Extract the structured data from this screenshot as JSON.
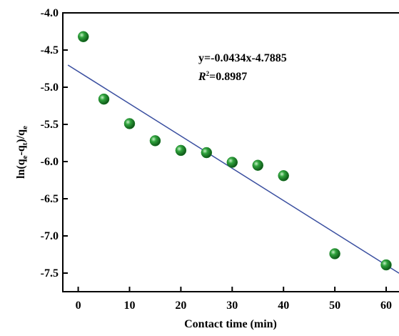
{
  "chart_data": {
    "type": "scatter",
    "x_label": "Contact time (min)",
    "y_label": {
      "main": "ln(q",
      "sub1": "e",
      "mid": "-q",
      "sub2": "t",
      "end": ")/q",
      "sub3": "e"
    },
    "annotation": {
      "equation": "y=-0.0434x-4.7885",
      "r_symbol": "R",
      "r_sup": "2",
      "r_value": "=0.8987"
    },
    "xlim": [
      -3,
      62.5
    ],
    "xticks": [
      0,
      10,
      20,
      30,
      40,
      50,
      60
    ],
    "ylim": [
      -7.75,
      -4.0
    ],
    "yticks": [
      {
        "value": -4.0,
        "label": "-4.0"
      },
      -4.5,
      {
        "value": -5.0,
        "label": "-5.0"
      },
      -5.5,
      {
        "value": -6.0,
        "label": "-6.0"
      },
      -6.5,
      {
        "value": -7.0,
        "label": "-7.0"
      },
      -7.5
    ],
    "series": [
      {
        "color": "#1f8a2e",
        "x": [
          1,
          5,
          10,
          15,
          20,
          25,
          30,
          35,
          40,
          50,
          60
        ],
        "values": [
          -4.32,
          -5.16,
          -5.49,
          -5.72,
          -5.85,
          -5.88,
          -6.01,
          -6.05,
          -6.19,
          -7.24,
          -7.39
        ]
      },
      {
        "color": "#3a4fa0",
        "x": [
          -2,
          62.5
        ],
        "values": [
          -4.7017,
          -7.501
        ]
      }
    ]
  }
}
